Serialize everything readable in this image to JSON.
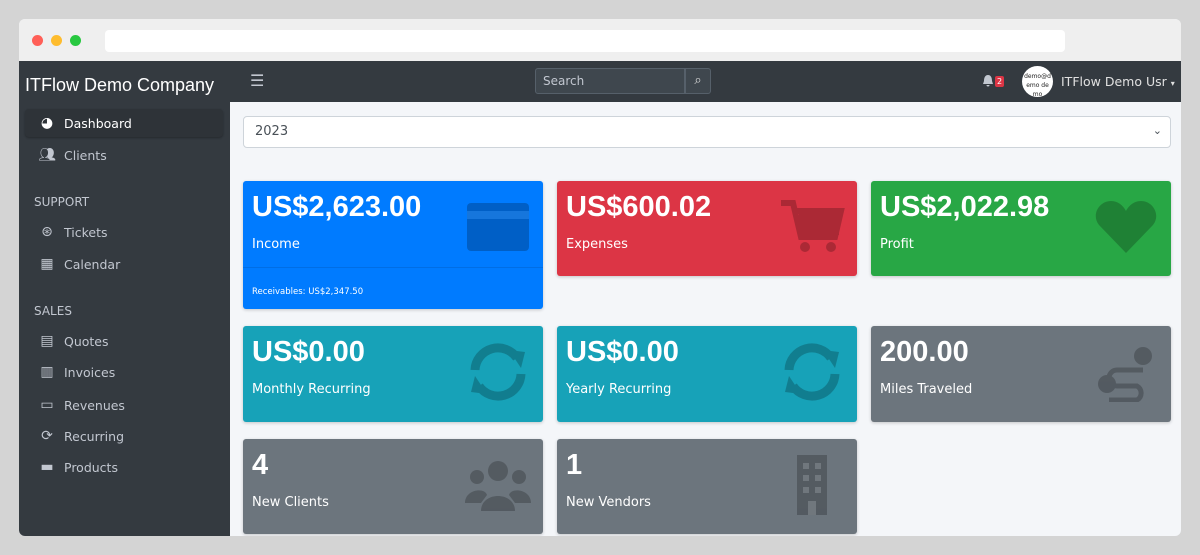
{
  "browser": {
    "dots": [
      "#ff5f57",
      "#febc2e",
      "#28c840"
    ]
  },
  "sidebar": {
    "brand": "ITFlow Demo Company",
    "items": [
      {
        "label": "Dashboard",
        "icon": "tachometer-icon",
        "active": true
      },
      {
        "label": "Clients",
        "icon": "users-icon"
      }
    ],
    "support_header": "SUPPORT",
    "support_items": [
      {
        "label": "Tickets",
        "icon": "life-ring-icon"
      },
      {
        "label": "Calendar",
        "icon": "calendar-icon"
      }
    ],
    "sales_header": "SALES",
    "sales_items": [
      {
        "label": "Quotes",
        "icon": "quote-icon"
      },
      {
        "label": "Invoices",
        "icon": "invoice-icon"
      },
      {
        "label": "Revenues",
        "icon": "credit-card-icon"
      },
      {
        "label": "Recurring",
        "icon": "sync-icon"
      },
      {
        "label": "Products",
        "icon": "box-icon"
      }
    ]
  },
  "topnav": {
    "search_placeholder": "Search",
    "notifications": "2",
    "avatar_text": "demo@demo demo",
    "user": "ITFlow Demo Usr"
  },
  "year_select": "2023",
  "cards": [
    {
      "value": "US$2,623.00",
      "label": "Income",
      "color": "#007bff",
      "icon": "credit-card-icon",
      "footer": "Receivables: US$2,347.50"
    },
    {
      "value": "US$600.02",
      "label": "Expenses",
      "color": "#dc3545",
      "icon": "shopping-cart-icon"
    },
    {
      "value": "US$2,022.98",
      "label": "Profit",
      "color": "#28a745",
      "icon": "heart-icon"
    },
    {
      "value": "US$0.00",
      "label": "Monthly Recurring",
      "color": "#17a2b8",
      "icon": "sync-icon"
    },
    {
      "value": "US$0.00",
      "label": "Yearly Recurring",
      "color": "#17a2b8",
      "icon": "sync-icon"
    },
    {
      "value": "200.00",
      "label": "Miles Traveled",
      "color": "#6c757d",
      "icon": "route-icon"
    },
    {
      "value": "4",
      "label": "New Clients",
      "color": "#6c757d",
      "icon": "users-icon"
    },
    {
      "value": "1",
      "label": "New Vendors",
      "color": "#6c757d",
      "icon": "building-icon"
    }
  ]
}
